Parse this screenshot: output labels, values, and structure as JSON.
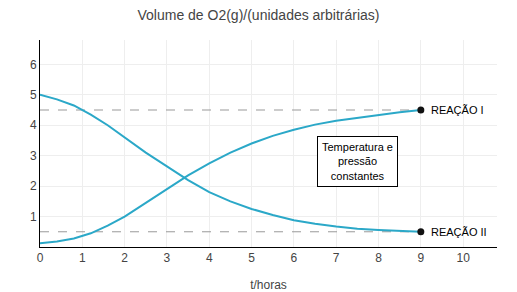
{
  "chart_data": {
    "type": "line",
    "title": "Volume de O2(g)/(unidades arbitrárias)",
    "x_label": "t/horas",
    "xlim": [
      0,
      10.8
    ],
    "ylim": [
      0,
      6.8
    ],
    "xticks": [
      0,
      1,
      2,
      3,
      4,
      5,
      6,
      7,
      8,
      9,
      10
    ],
    "yticks": [
      1,
      2,
      3,
      4,
      5,
      6
    ],
    "grid": true,
    "series": [
      {
        "name": "REAÇÃO I",
        "color": "#2ba8c8",
        "x": [
          0,
          0.4,
          0.8,
          1.2,
          1.6,
          2.0,
          2.5,
          3.0,
          3.5,
          4.0,
          4.5,
          5.0,
          5.5,
          6.0,
          6.5,
          7.0,
          7.5,
          8.0,
          8.5,
          9.0
        ],
        "values": [
          0.12,
          0.18,
          0.28,
          0.45,
          0.7,
          1.0,
          1.45,
          1.9,
          2.35,
          2.75,
          3.1,
          3.4,
          3.65,
          3.85,
          4.02,
          4.15,
          4.25,
          4.35,
          4.43,
          4.5
        ]
      },
      {
        "name": "REAÇÃO II",
        "color": "#2ba8c8",
        "x": [
          0,
          0.4,
          0.8,
          1.2,
          1.6,
          2.0,
          2.5,
          3.0,
          3.5,
          4.0,
          4.5,
          5.0,
          5.5,
          6.0,
          6.5,
          7.0,
          7.5,
          8.0,
          8.5,
          9.0
        ],
        "values": [
          5.0,
          4.85,
          4.65,
          4.35,
          4.0,
          3.6,
          3.1,
          2.65,
          2.2,
          1.8,
          1.5,
          1.25,
          1.05,
          0.88,
          0.76,
          0.67,
          0.6,
          0.56,
          0.52,
          0.5
        ]
      }
    ],
    "reference_lines": [
      {
        "y": 4.5,
        "x": [
          0,
          9
        ],
        "color": "#999999",
        "line_style": "dashed"
      },
      {
        "y": 0.5,
        "x": [
          0,
          9
        ],
        "color": "#999999",
        "line_style": "dashed"
      }
    ],
    "annotations": [
      {
        "text": "Temperatura e\npressão\nconstantes",
        "x": 7.5,
        "y": 2.8
      }
    ]
  }
}
